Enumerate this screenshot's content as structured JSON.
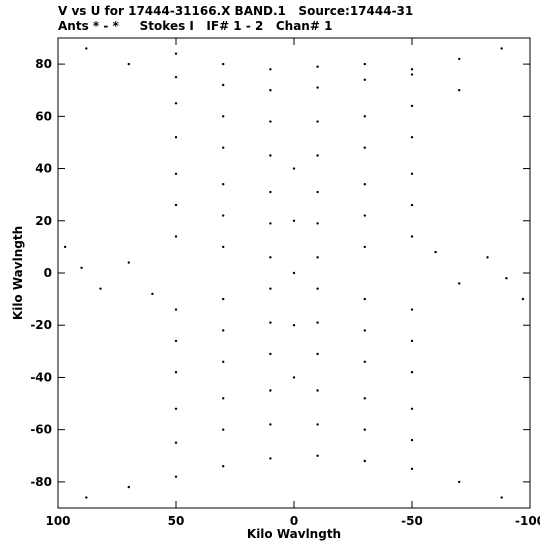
{
  "chart_data": {
    "type": "scatter",
    "title": "V vs U for 17444-31166.X BAND.1   Source:17444-31",
    "subtitle": "Ants * - *     Stokes I   IF# 1 - 2   Chan# 1",
    "xlabel": "Kilo Wavlngth",
    "ylabel": "Kilo Wavlngth",
    "xlim": [
      100,
      -100
    ],
    "ylim": [
      -90,
      90
    ],
    "x_reversed": true,
    "grid": false,
    "x_ticks": [
      100,
      50,
      0,
      -50,
      -100
    ],
    "x_tick_labels": [
      "100",
      "50",
      "0",
      "-50",
      "-100"
    ],
    "y_ticks": [
      -80,
      -60,
      -40,
      -20,
      0,
      20,
      40,
      60,
      80
    ],
    "y_tick_labels": [
      "-80",
      "-60",
      "-40",
      "-20",
      "0",
      "20",
      "40",
      "60",
      "80"
    ],
    "marker_color": "#000000",
    "series": [
      {
        "values": [
          {
            "u": 88,
            "v": 86
          },
          {
            "u": 70,
            "v": 80
          },
          {
            "u": 50,
            "v": 75
          },
          {
            "u": 30,
            "v": 72
          },
          {
            "u": 10,
            "v": 70
          },
          {
            "u": -10,
            "v": 71
          },
          {
            "u": -30,
            "v": 74
          },
          {
            "u": -50,
            "v": 78
          },
          {
            "u": -70,
            "v": 82
          },
          {
            "u": -88,
            "v": 86
          },
          {
            "u": -88,
            "v": -86
          },
          {
            "u": -70,
            "v": -80
          },
          {
            "u": -50,
            "v": -75
          },
          {
            "u": -30,
            "v": -72
          },
          {
            "u": -10,
            "v": -70
          },
          {
            "u": 10,
            "v": -71
          },
          {
            "u": 30,
            "v": -74
          },
          {
            "u": 50,
            "v": -78
          },
          {
            "u": 70,
            "v": -82
          },
          {
            "u": 88,
            "v": -86
          },
          {
            "u": 50,
            "v": 84
          },
          {
            "u": 30,
            "v": 80
          },
          {
            "u": 10,
            "v": 78
          },
          {
            "u": -10,
            "v": 79
          },
          {
            "u": -30,
            "v": 80
          },
          {
            "u": -50,
            "v": 76
          },
          {
            "u": -70,
            "v": 70
          },
          {
            "u": 50,
            "v": 65
          },
          {
            "u": 30,
            "v": 60
          },
          {
            "u": 10,
            "v": 58
          },
          {
            "u": -10,
            "v": 58
          },
          {
            "u": -30,
            "v": 60
          },
          {
            "u": -50,
            "v": 64
          },
          {
            "u": 50,
            "v": -65
          },
          {
            "u": 30,
            "v": -60
          },
          {
            "u": 10,
            "v": -58
          },
          {
            "u": -10,
            "v": -58
          },
          {
            "u": -30,
            "v": -60
          },
          {
            "u": -50,
            "v": -64
          },
          {
            "u": 50,
            "v": 52
          },
          {
            "u": 30,
            "v": 48
          },
          {
            "u": 10,
            "v": 45
          },
          {
            "u": -10,
            "v": 45
          },
          {
            "u": -30,
            "v": 48
          },
          {
            "u": -50,
            "v": 52
          },
          {
            "u": 50,
            "v": -52
          },
          {
            "u": 30,
            "v": -48
          },
          {
            "u": 10,
            "v": -45
          },
          {
            "u": -10,
            "v": -45
          },
          {
            "u": -30,
            "v": -48
          },
          {
            "u": -50,
            "v": -52
          },
          {
            "u": 50,
            "v": 38
          },
          {
            "u": 30,
            "v": 34
          },
          {
            "u": 10,
            "v": 31
          },
          {
            "u": -10,
            "v": 31
          },
          {
            "u": -30,
            "v": 34
          },
          {
            "u": -50,
            "v": 38
          },
          {
            "u": 50,
            "v": -38
          },
          {
            "u": 30,
            "v": -34
          },
          {
            "u": 10,
            "v": -31
          },
          {
            "u": -10,
            "v": -31
          },
          {
            "u": -30,
            "v": -34
          },
          {
            "u": -50,
            "v": -38
          },
          {
            "u": 50,
            "v": 26
          },
          {
            "u": 30,
            "v": 22
          },
          {
            "u": 10,
            "v": 19
          },
          {
            "u": -10,
            "v": 19
          },
          {
            "u": -30,
            "v": 22
          },
          {
            "u": -50,
            "v": 26
          },
          {
            "u": 50,
            "v": -26
          },
          {
            "u": 30,
            "v": -22
          },
          {
            "u": 10,
            "v": -19
          },
          {
            "u": -10,
            "v": -19
          },
          {
            "u": -30,
            "v": -22
          },
          {
            "u": -50,
            "v": -26
          },
          {
            "u": 50,
            "v": 14
          },
          {
            "u": 30,
            "v": 10
          },
          {
            "u": 10,
            "v": 6
          },
          {
            "u": -10,
            "v": 6
          },
          {
            "u": -30,
            "v": 10
          },
          {
            "u": -50,
            "v": 14
          },
          {
            "u": 50,
            "v": -14
          },
          {
            "u": 30,
            "v": -10
          },
          {
            "u": 10,
            "v": -6
          },
          {
            "u": -10,
            "v": -6
          },
          {
            "u": -30,
            "v": -10
          },
          {
            "u": -50,
            "v": -14
          },
          {
            "u": 97,
            "v": 10
          },
          {
            "u": 90,
            "v": 2
          },
          {
            "u": 82,
            "v": -6
          },
          {
            "u": 70,
            "v": 4
          },
          {
            "u": 60,
            "v": -8
          },
          {
            "u": -97,
            "v": -10
          },
          {
            "u": -90,
            "v": -2
          },
          {
            "u": -82,
            "v": 6
          },
          {
            "u": -70,
            "v": -4
          },
          {
            "u": -60,
            "v": 8
          },
          {
            "u": 0,
            "v": 40
          },
          {
            "u": 0,
            "v": 20
          },
          {
            "u": 0,
            "v": 0
          },
          {
            "u": 0,
            "v": -20
          },
          {
            "u": 0,
            "v": -40
          }
        ]
      }
    ]
  }
}
